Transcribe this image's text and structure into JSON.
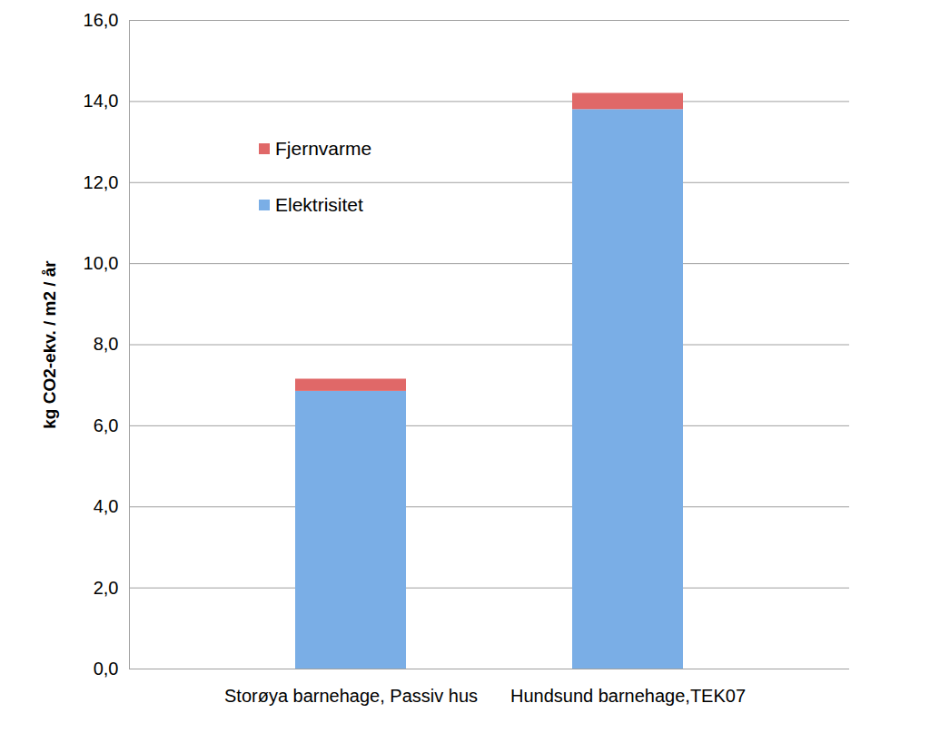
{
  "chart_data": {
    "type": "bar",
    "stacked": true,
    "categories": [
      "Storøya barnehage, Passiv hus",
      "Hundsund barnehage,TEK07"
    ],
    "series": [
      {
        "name": "Elektrisitet",
        "color": "#7aaee6",
        "values": [
          6.85,
          13.8
        ]
      },
      {
        "name": "Fjernvarme",
        "color": "#e06868",
        "values": [
          0.3,
          0.4
        ]
      }
    ],
    "y_label": "kg CO2-ekv. / m2 / år",
    "ylim": [
      0,
      16
    ],
    "yticks": [
      {
        "value": 0,
        "label": "0,0"
      },
      {
        "value": 2,
        "label": "2,0"
      },
      {
        "value": 4,
        "label": "4,0"
      },
      {
        "value": 6,
        "label": "6,0"
      },
      {
        "value": 8,
        "label": "8,0"
      },
      {
        "value": 10,
        "label": "10,0"
      },
      {
        "value": 12,
        "label": "12,0"
      },
      {
        "value": 14,
        "label": "14,0"
      },
      {
        "value": 16,
        "label": "16,0"
      }
    ],
    "grid": true,
    "legend": "upper left"
  }
}
